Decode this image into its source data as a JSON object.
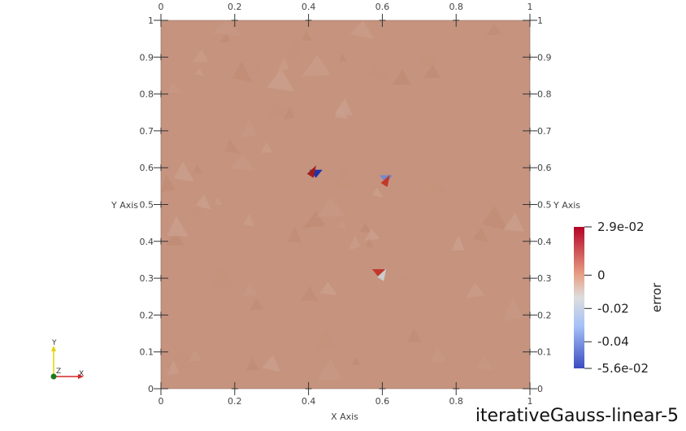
{
  "view": {
    "title": "iterativeGauss-linear-5",
    "background": "#ffffff",
    "field_color": "#c5937e"
  },
  "chart_data": {
    "type": "heatmap",
    "xlabel": "X Axis",
    "ylabel": "Y Axis",
    "xlim": [
      0,
      1
    ],
    "ylim": [
      0,
      1
    ],
    "x_ticks": [
      "0",
      "0.2",
      "0.4",
      "0.6",
      "0.8",
      "1"
    ],
    "y_ticks": [
      "0",
      "0.1",
      "0.2",
      "0.3",
      "0.4",
      "0.5",
      "0.6",
      "0.7",
      "0.8",
      "0.9",
      "1"
    ],
    "grid": false,
    "colorbar": {
      "title": "error",
      "range": [
        -0.056,
        0.029
      ],
      "labels": [
        "2.9e-02",
        "0",
        "-0.02",
        "-0.04",
        "-5.6e-02"
      ],
      "label_values": [
        0.029,
        0,
        -0.02,
        -0.04,
        -0.056
      ],
      "colormap": "cool to warm",
      "stops": [
        "#b40426",
        "#dd7a60",
        "#dddddd",
        "#8db0fe",
        "#3b4cc0"
      ],
      "placement": "right"
    },
    "hotspots": [
      {
        "x": 0.42,
        "y": 0.59,
        "color": "#2233aa"
      },
      {
        "x": 0.41,
        "y": 0.59,
        "color": "#a01c1c"
      },
      {
        "x": 0.61,
        "y": 0.575,
        "color": "#7788cc"
      },
      {
        "x": 0.61,
        "y": 0.565,
        "color": "#c0392b"
      },
      {
        "x": 0.59,
        "y": 0.32,
        "color": "#c0392b"
      },
      {
        "x": 0.6,
        "y": 0.31,
        "color": "#cccccc"
      }
    ]
  },
  "orientation_axes": {
    "x_label": "X",
    "y_label": "Y",
    "z_label": "Z",
    "x_color": "#d62728",
    "y_color": "#e6d200",
    "z_color": "#1a7a1a"
  }
}
